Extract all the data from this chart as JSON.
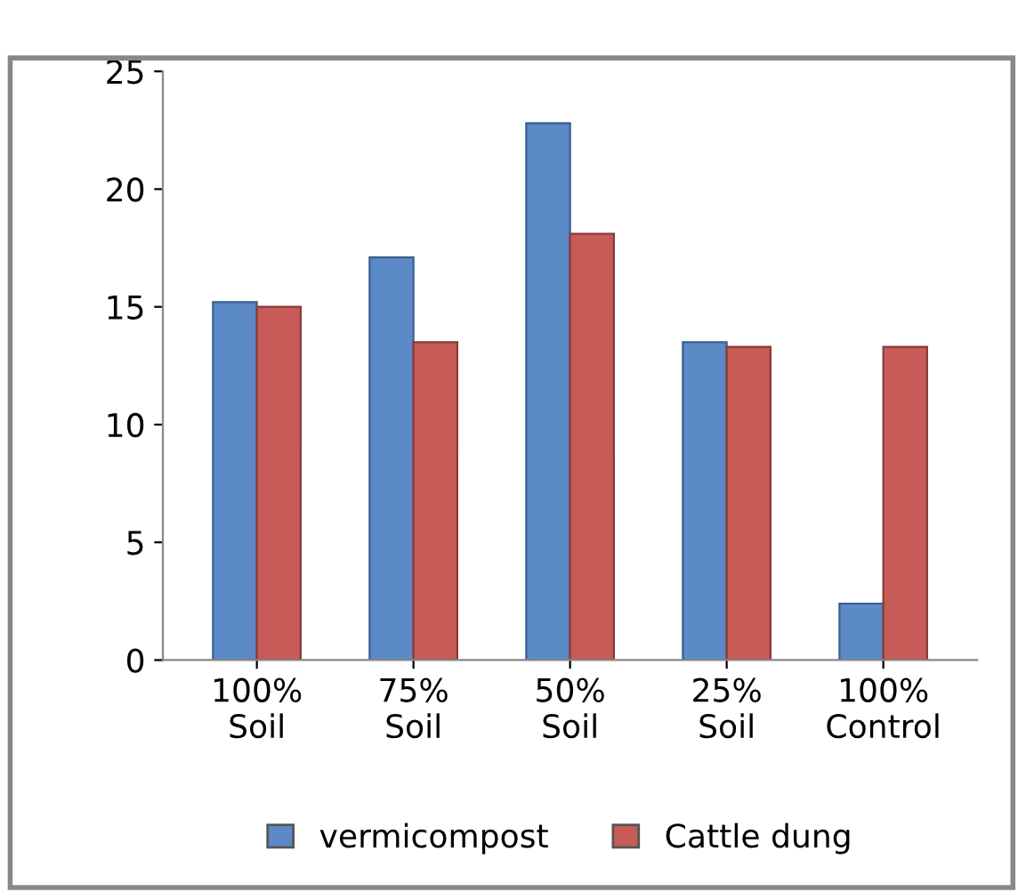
{
  "chart_data": {
    "type": "bar",
    "categories": [
      "100%\nSoil",
      "75%\nSoil",
      "50%\nSoil",
      "25%\nSoil",
      "100%\nControl"
    ],
    "series": [
      {
        "name": "vermicompost",
        "color": "#5b8ac6",
        "values": [
          15.2,
          17.1,
          22.8,
          13.5,
          2.4
        ]
      },
      {
        "name": "Cattle dung",
        "color": "#c65b57",
        "values": [
          15.0,
          13.5,
          18.1,
          13.3,
          13.3
        ]
      }
    ],
    "ylim": [
      0,
      25
    ],
    "yticks": [
      0,
      5,
      10,
      15,
      20,
      25
    ],
    "grid": false,
    "legend": "bottom"
  }
}
